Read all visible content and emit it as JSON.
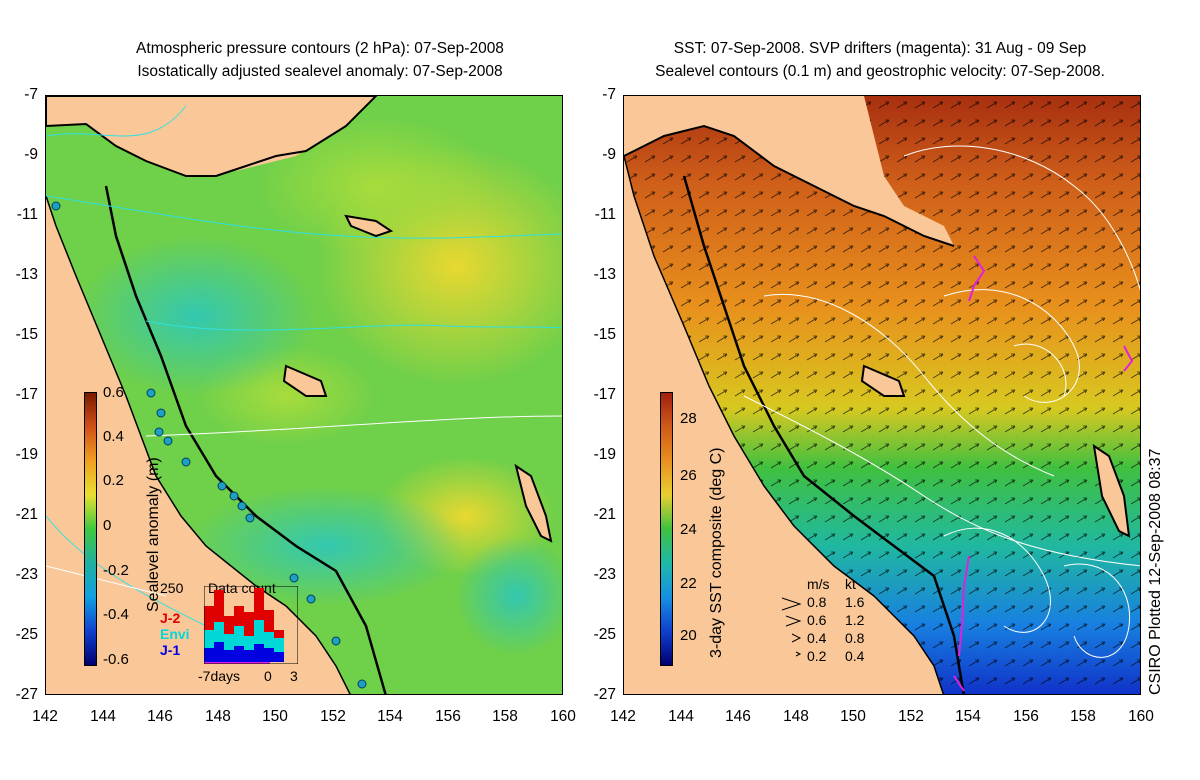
{
  "left_panel": {
    "title_line1": "Atmospheric pressure contours (2 hPa): 07-Sep-2008",
    "title_line2": "Isostatically adjusted sealevel anomaly: 07-Sep-2008",
    "colorbar_label": "Sealevel anomaly (m)",
    "colorbar_ticks": [
      "0.6",
      "0.4",
      "0.2",
      "0",
      "-0.2",
      "-0.4",
      "-0.6"
    ],
    "inset": {
      "title": "Data count",
      "ymax_label": "250",
      "legend": [
        {
          "label": "J-2",
          "color": "#e00000"
        },
        {
          "label": "Envi",
          "color": "#00d8d8"
        },
        {
          "label": "J-1",
          "color": "#0000e0"
        }
      ],
      "xlabels": [
        "-7days",
        "0",
        "3"
      ]
    }
  },
  "right_panel": {
    "title_line1": "SST: 07-Sep-2008. SVP drifters (magenta): 31 Aug - 09 Sep",
    "title_line2": "Sealevel contours (0.1 m) and geostrophic velocity: 07-Sep-2008.",
    "colorbar_label": "3-day SST composite (deg C)",
    "colorbar_ticks": [
      "28",
      "26",
      "24",
      "22",
      "20"
    ],
    "velocity_key": {
      "header_ms": "m/s",
      "header_kt": "kt",
      "rows": [
        {
          "ms": "0.8",
          "kt": "1.6"
        },
        {
          "ms": "0.6",
          "kt": "1.2"
        },
        {
          "ms": "0.4",
          "kt": "0.8"
        },
        {
          "ms": "0.2",
          "kt": "0.4"
        }
      ]
    },
    "credit": "CSIRO Plotted 12-Sep-2008 08:37"
  },
  "axes": {
    "y_ticks": [
      "-7",
      "-9",
      "-11",
      "-13",
      "-15",
      "-17",
      "-19",
      "-21",
      "-23",
      "-25",
      "-27"
    ],
    "x_ticks": [
      "142",
      "144",
      "146",
      "148",
      "150",
      "152",
      "154",
      "156",
      "158",
      "160"
    ]
  },
  "colors": {
    "land": "#fac898",
    "left_ocean": "#6fd04a",
    "right_warm": "#e07a1a",
    "right_cold": "#1a50e0"
  }
}
